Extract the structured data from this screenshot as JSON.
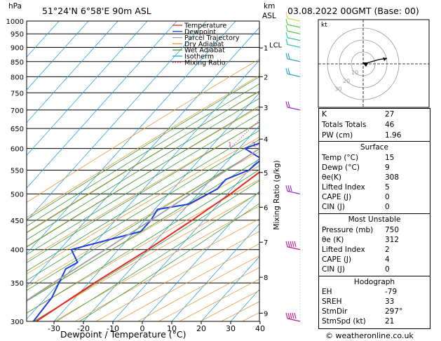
{
  "header": {
    "hpa_label": "hPa",
    "location": "51°24'N  6°58'E  90m  ASL",
    "km_label": "km",
    "asl_label": "ASL",
    "datetime": "03.08.2022  00GMT  (Base: 00)"
  },
  "colors": {
    "temperature": "#e8261e",
    "dewpoint": "#1e3cdc",
    "parcel": "#a0a0a0",
    "dry_adiabat": "#e89a3c",
    "wet_adiabat": "#3ca03c",
    "isotherm": "#2aa0e0",
    "mixing_ratio": "#c8148c",
    "wind_profile": [
      "#c0148c",
      "#9614c8",
      "#14a0c8",
      "#14c8a0",
      "#5ac83c",
      "#c8dc3c"
    ]
  },
  "legend": [
    "Temperature",
    "Dewpoint",
    "Parcel Trajectory",
    "Dry Adiabat",
    "Wet Adiabat",
    "Isotherm",
    "Mixing Ratio"
  ],
  "footer": {
    "xlabel": "Dewpoint / Temperature (°C)",
    "credit": "© weatheronline.co.uk"
  },
  "chart_data": {
    "type": "line",
    "title": "51°24'N  6°58'E  90m  ASL",
    "xlabel": "Dewpoint / Temperature (°C)",
    "ylabel": "hPa",
    "y_scale": "log",
    "ylim": [
      1000,
      300
    ],
    "xlim": [
      -40,
      40
    ],
    "x_ticks": [
      -30,
      -20,
      -10,
      0,
      10,
      20,
      30,
      40
    ],
    "pressure_levels": [
      300,
      350,
      400,
      450,
      500,
      550,
      600,
      650,
      700,
      750,
      800,
      850,
      900,
      950,
      1000
    ],
    "km_ticks": [
      {
        "km": "9",
        "p": 310
      },
      {
        "km": "8",
        "p": 358
      },
      {
        "km": "7",
        "p": 412
      },
      {
        "km": "6",
        "p": 474
      },
      {
        "km": "5",
        "p": 545
      },
      {
        "km": "4",
        "p": 623
      },
      {
        "km": "3",
        "p": 708
      },
      {
        "km": "2",
        "p": 800
      },
      {
        "km": "1",
        "p": 898
      }
    ],
    "lcl_label": "LCL",
    "lcl_p": 910,
    "mixing_ratio_label": "Mixing Ratio (g/kg)",
    "mixing_ratio_values": [
      "1",
      "2",
      "3",
      "4",
      "6",
      "8",
      "10",
      "15",
      "20",
      "25"
    ],
    "series": [
      {
        "name": "Temperature",
        "points": [
          [
            1000,
            15.5
          ],
          [
            950,
            12.5
          ],
          [
            900,
            9.5
          ],
          [
            850,
            7
          ],
          [
            800,
            8
          ],
          [
            775,
            8.5
          ],
          [
            750,
            8.5
          ],
          [
            700,
            4
          ],
          [
            650,
            3
          ],
          [
            600,
            -1
          ],
          [
            550,
            -5.5
          ],
          [
            500,
            -9
          ],
          [
            470,
            -12
          ],
          [
            450,
            -14
          ],
          [
            400,
            -20
          ],
          [
            350,
            -28
          ],
          [
            300,
            -36
          ]
        ]
      },
      {
        "name": "Dewpoint",
        "points": [
          [
            1000,
            9
          ],
          [
            950,
            8.5
          ],
          [
            900,
            8
          ],
          [
            850,
            7
          ],
          [
            815,
            5.5
          ],
          [
            800,
            0
          ],
          [
            775,
            1.5
          ],
          [
            750,
            3
          ],
          [
            700,
            1
          ],
          [
            690,
            -16
          ],
          [
            660,
            -18
          ],
          [
            630,
            -10
          ],
          [
            600,
            -18
          ],
          [
            575,
            -9
          ],
          [
            550,
            -10
          ],
          [
            530,
            -15
          ],
          [
            510,
            -15
          ],
          [
            480,
            -20
          ],
          [
            470,
            -29
          ],
          [
            450,
            -28
          ],
          [
            430,
            -28
          ],
          [
            420,
            -34
          ],
          [
            400,
            -46
          ],
          [
            380,
            -40
          ],
          [
            370,
            -42
          ],
          [
            330,
            -38
          ],
          [
            300,
            -37
          ]
        ]
      },
      {
        "name": "Parcel Trajectory",
        "points": [
          [
            1000,
            15
          ],
          [
            910,
            7.5
          ],
          [
            850,
            4
          ],
          [
            800,
            1
          ],
          [
            750,
            -2
          ],
          [
            700,
            -5
          ],
          [
            650,
            -9
          ],
          [
            600,
            -13
          ],
          [
            550,
            -17.5
          ],
          [
            500,
            -22.5
          ],
          [
            450,
            -28
          ],
          [
            400,
            -34.5
          ],
          [
            350,
            -42
          ],
          [
            300,
            -50
          ]
        ]
      }
    ],
    "wind_barbs": [
      {
        "p": 300,
        "speed_kt": 50
      },
      {
        "p": 400,
        "speed_kt": 45
      },
      {
        "p": 500,
        "speed_kt": 30
      },
      {
        "p": 700,
        "speed_kt": 20
      },
      {
        "p": 800,
        "speed_kt": 15
      },
      {
        "p": 850,
        "speed_kt": 15
      },
      {
        "p": 900,
        "speed_kt": 10
      },
      {
        "p": 925,
        "speed_kt": 10
      },
      {
        "p": 950,
        "speed_kt": 10
      },
      {
        "p": 975,
        "speed_kt": 5
      },
      {
        "p": 1000,
        "speed_kt": 5
      }
    ],
    "hodograph": {
      "label": "kt",
      "ring_labels": [
        "10",
        "20",
        "30"
      ]
    }
  },
  "indices": [
    {
      "label": "K",
      "value": "27"
    },
    {
      "label": "Totals Totals",
      "value": "46"
    },
    {
      "label": "PW (cm)",
      "value": "1.96"
    }
  ],
  "surface": {
    "title": "Surface",
    "rows": [
      {
        "label": "Temp (°C)",
        "value": "15"
      },
      {
        "label": "Dewp (°C)",
        "value": "9"
      },
      {
        "label": "θe(K)",
        "value": "308"
      },
      {
        "label": "Lifted Index",
        "value": "5"
      },
      {
        "label": "CAPE (J)",
        "value": "0"
      },
      {
        "label": "CIN (J)",
        "value": "0"
      }
    ]
  },
  "most_unstable": {
    "title": "Most Unstable",
    "rows": [
      {
        "label": "Pressure (mb)",
        "value": "750"
      },
      {
        "label": "θe (K)",
        "value": "312"
      },
      {
        "label": "Lifted Index",
        "value": "2"
      },
      {
        "label": "CAPE (J)",
        "value": "4"
      },
      {
        "label": "CIN (J)",
        "value": "0"
      }
    ]
  },
  "hodograph_table": {
    "title": "Hodograph",
    "rows": [
      {
        "label": "EH",
        "value": "-79"
      },
      {
        "label": "SREH",
        "value": "33"
      },
      {
        "label": "StmDir",
        "value": "297°"
      },
      {
        "label": "StmSpd (kt)",
        "value": "21"
      }
    ]
  }
}
